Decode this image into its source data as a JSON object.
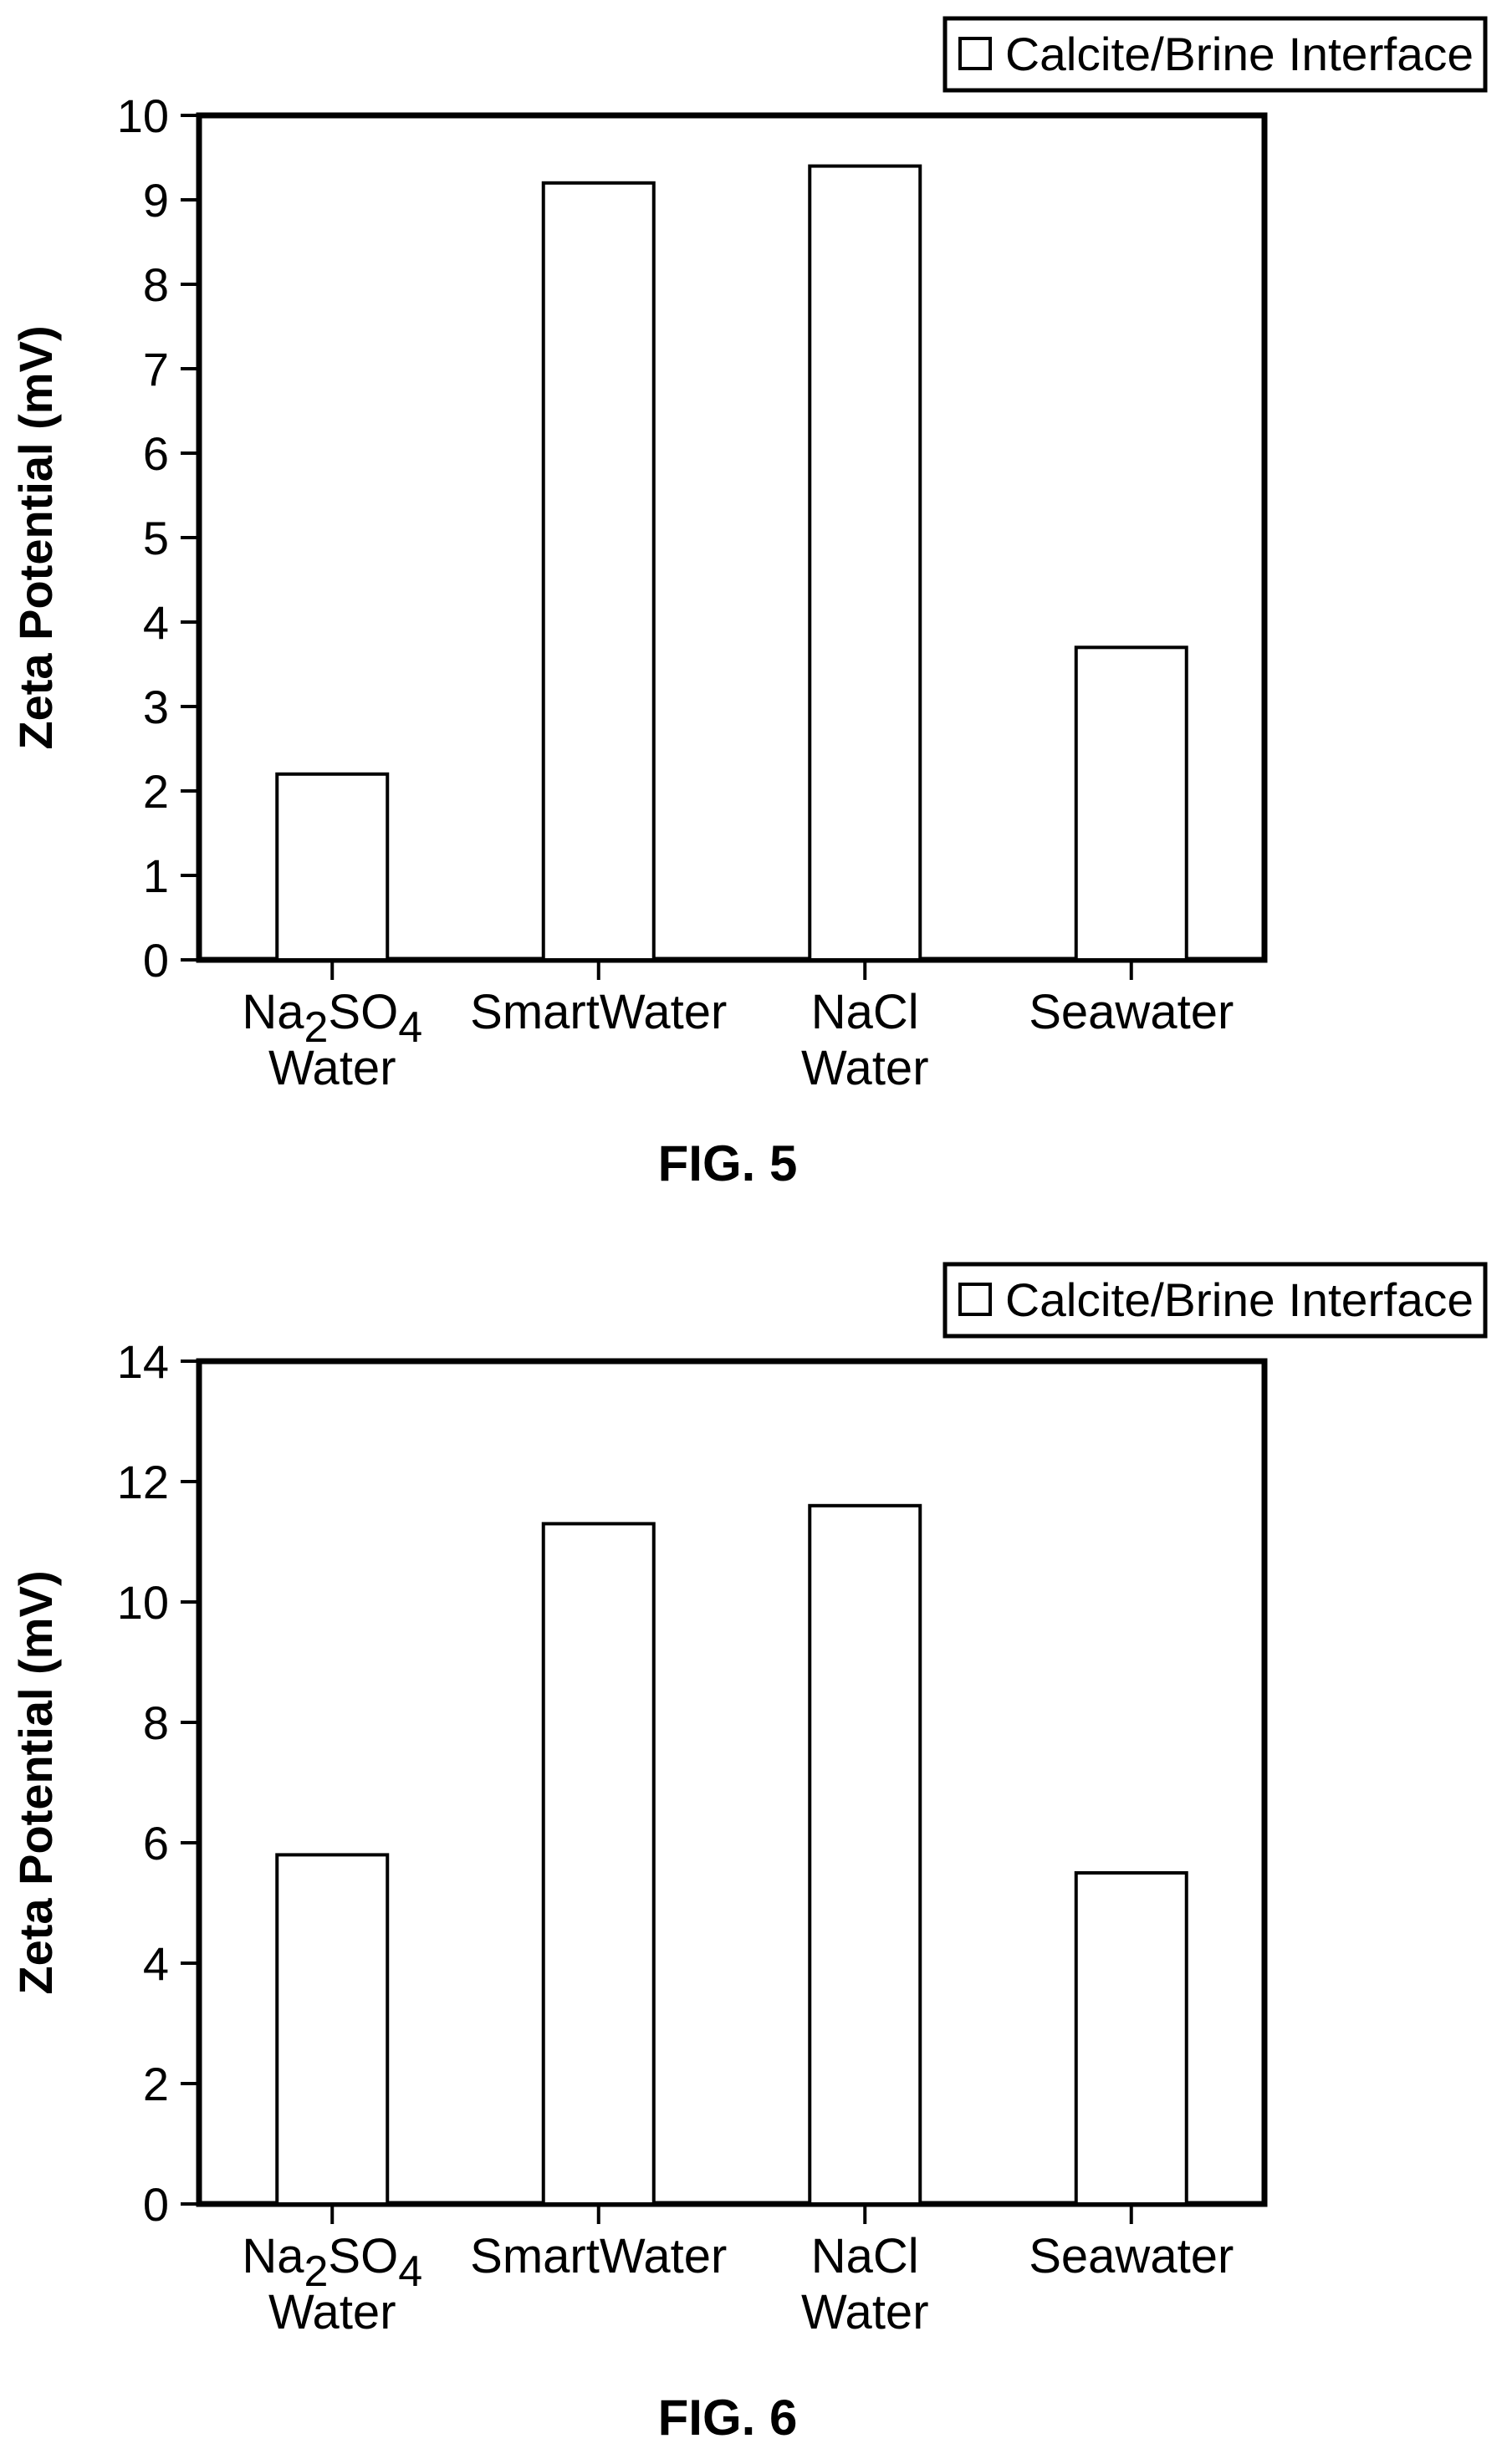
{
  "chart_data": [
    {
      "type": "bar",
      "title": "FIG. 5",
      "ylabel": "Zeta Potential (mV)",
      "xlabel": "",
      "ylim": [
        0,
        10
      ],
      "yticks": [
        "0",
        "1",
        "2",
        "3",
        "4",
        "5",
        "6",
        "7",
        "8",
        "9",
        "10"
      ],
      "categories": [
        {
          "parts": [
            {
              "t": "Na"
            },
            {
              "t": "2",
              "sub": true
            },
            {
              "t": "SO"
            },
            {
              "t": "4",
              "sub": true
            }
          ],
          "line2": "Water"
        },
        {
          "parts": [
            {
              "t": "SmartWater"
            }
          ],
          "line2": ""
        },
        {
          "parts": [
            {
              "t": "NaCl"
            }
          ],
          "line2": "Water"
        },
        {
          "parts": [
            {
              "t": "Seawater"
            }
          ],
          "line2": ""
        }
      ],
      "series": [
        {
          "name": "Calcite/Brine Interface",
          "values": [
            2.2,
            9.2,
            9.4,
            3.7
          ]
        }
      ],
      "legend": "top-right",
      "grid": false
    },
    {
      "type": "bar",
      "title": "FIG. 6",
      "ylabel": "Zeta Potential (mV)",
      "xlabel": "",
      "ylim": [
        0,
        14
      ],
      "yticks": [
        "0",
        "2",
        "4",
        "6",
        "8",
        "10",
        "12",
        "14"
      ],
      "categories": [
        {
          "parts": [
            {
              "t": "Na"
            },
            {
              "t": "2",
              "sub": true
            },
            {
              "t": "SO"
            },
            {
              "t": "4",
              "sub": true
            }
          ],
          "line2": "Water"
        },
        {
          "parts": [
            {
              "t": "SmartWater"
            }
          ],
          "line2": ""
        },
        {
          "parts": [
            {
              "t": "NaCl"
            }
          ],
          "line2": "Water"
        },
        {
          "parts": [
            {
              "t": "Seawater"
            }
          ],
          "line2": ""
        }
      ],
      "series": [
        {
          "name": "Calcite/Brine Interface",
          "values": [
            5.8,
            11.3,
            11.6,
            5.5
          ]
        }
      ],
      "legend": "top-right",
      "grid": false
    }
  ]
}
